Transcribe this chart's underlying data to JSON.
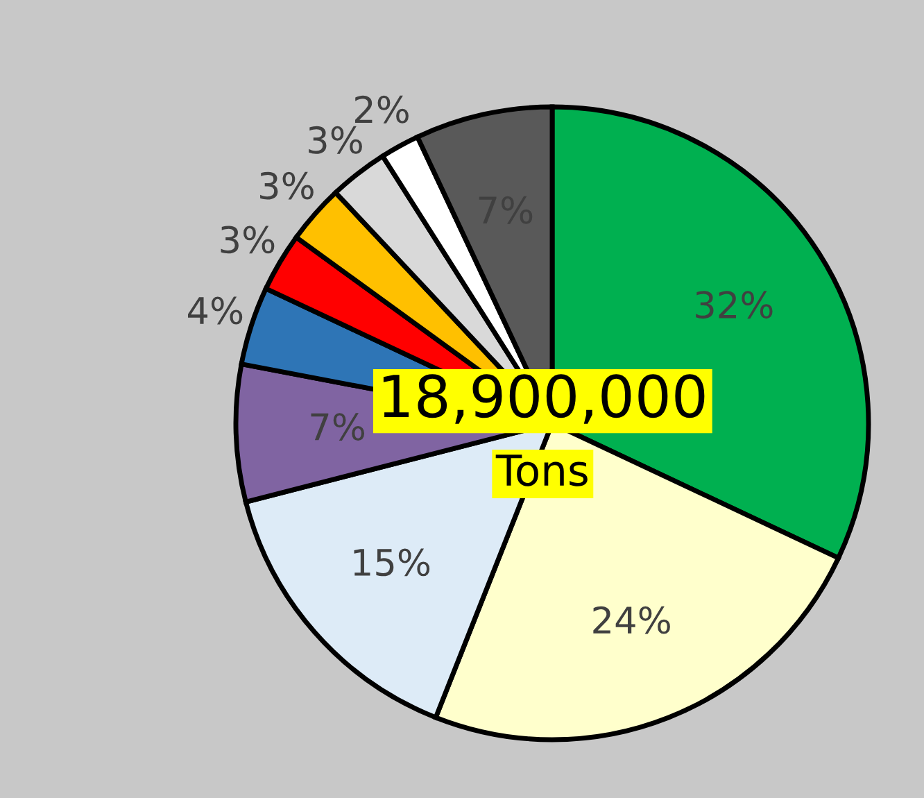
{
  "chart_data": {
    "type": "pie",
    "categories": [
      null,
      null,
      null,
      null,
      null,
      null,
      null,
      null,
      null,
      null
    ],
    "values": [
      32,
      24,
      15,
      7,
      4,
      3,
      3,
      3,
      2,
      7
    ],
    "colors": [
      "#00b050",
      "#ffffcc",
      "#ddebf7",
      "#8064a2",
      "#2e75b6",
      "#ff0000",
      "#ffc000",
      "#d9d9d9",
      "#ffffff",
      "#595959"
    ],
    "value_labels": [
      "32%",
      "24%",
      "15%",
      "7%",
      "4%",
      "3%",
      "3%",
      "3%",
      "2%",
      "7%"
    ],
    "annotations": [
      "18,900,000",
      "Tons"
    ],
    "legend": false
  }
}
